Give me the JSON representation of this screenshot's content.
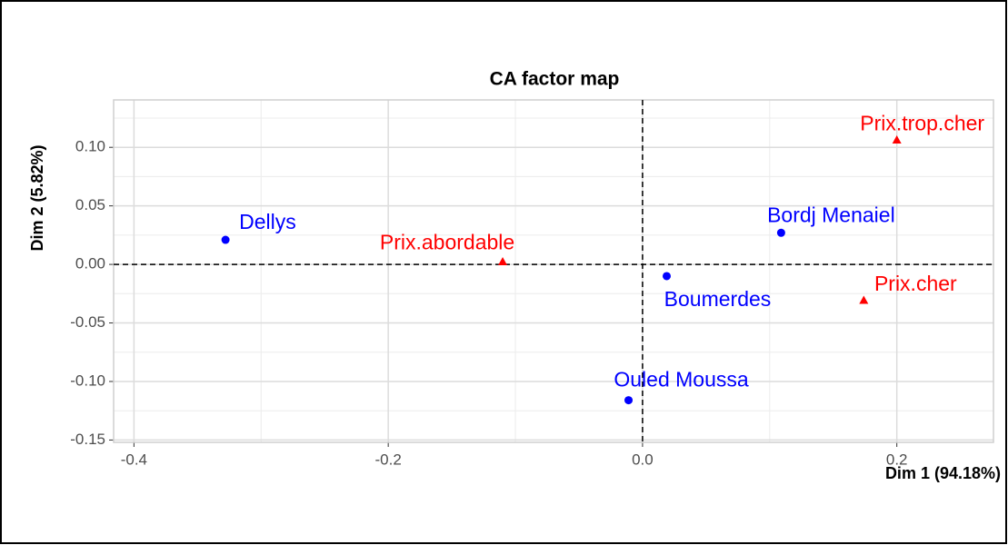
{
  "chart_data": {
    "type": "scatter",
    "title": "CA factor map",
    "x_label": "Dim 1 (94.18%)",
    "y_label": "Dim 2 (5.82%)",
    "series": [
      {
        "color": "#0000ff",
        "marker": "circle",
        "labels": [
          "Bordj Menaiel",
          "Boumerdes",
          "Dellys",
          "Ouled Moussa"
        ],
        "x": [
          0.109,
          0.019,
          -0.328,
          -0.011
        ],
        "values": [
          0.027,
          -0.01,
          0.021,
          -0.116
        ]
      },
      {
        "color": "#ff0000",
        "marker": "triangle",
        "labels": [
          "Prix.abordable",
          "Prix.cher",
          "Prix.trop.cher"
        ],
        "x": [
          -0.11,
          0.174,
          0.2
        ],
        "values": [
          0.002,
          -0.031,
          0.106
        ]
      }
    ],
    "xlim": [
      -0.416,
      0.276
    ],
    "ylim": [
      -0.152,
      0.1405
    ],
    "xticks": [
      -0.4,
      -0.2,
      {
        "value": 0,
        "label": "0.0"
      },
      0.2
    ],
    "yticks": [
      {
        "value": -0.15,
        "label": "-0.15"
      },
      {
        "value": -0.1,
        "label": "-0.10"
      },
      -0.05,
      {
        "value": 0,
        "label": "0.00"
      },
      0.05,
      {
        "value": 0.1,
        "label": "0.10"
      }
    ],
    "grid": true,
    "minor_grid": true,
    "zero_lines": true
  }
}
